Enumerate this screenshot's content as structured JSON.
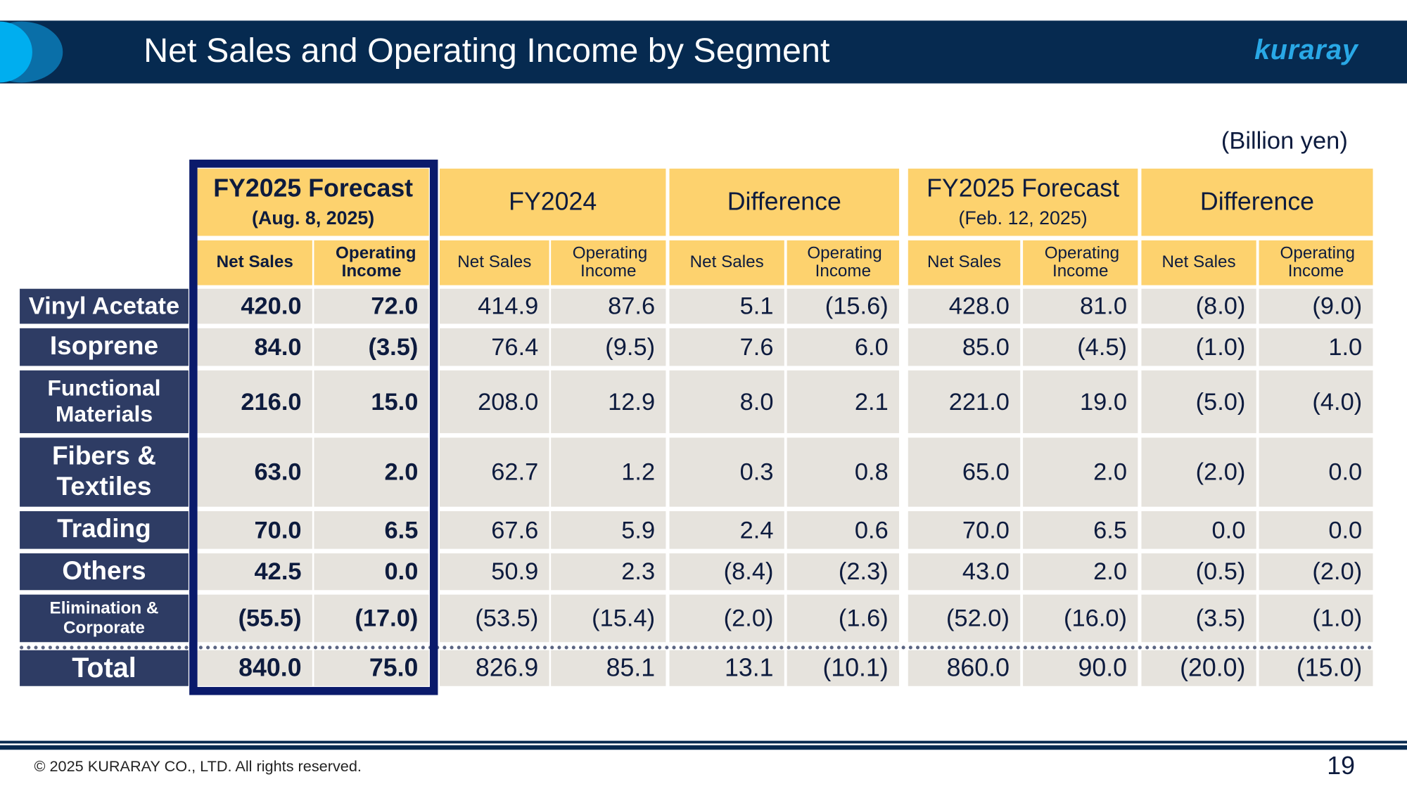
{
  "header": {
    "title": "Net Sales and Operating Income by Segment",
    "logo": "kuraray",
    "accent_colors": {
      "band": "#062a50",
      "logo": "#29a8e6",
      "highlight_box": "#0a1a6b",
      "header_fill": "#fdd26e"
    }
  },
  "unit": "(Billion yen)",
  "table": {
    "groups": [
      {
        "title": "FY2025 Forecast",
        "sub": "(Aug. 8, 2025)"
      },
      {
        "title": "FY2024",
        "sub": ""
      },
      {
        "title": "Difference",
        "sub": ""
      },
      {
        "title": "FY2025 Forecast",
        "sub": "(Feb. 12, 2025)"
      },
      {
        "title": "Difference",
        "sub": ""
      }
    ],
    "subheaders": [
      "Net Sales",
      "Operating Income"
    ],
    "rows": [
      {
        "label": "Vinyl Acetate",
        "values": [
          "420.0",
          "72.0",
          "414.9",
          "87.6",
          "5.1",
          "(15.6)",
          "428.0",
          "81.0",
          "(8.0)",
          "(9.0)"
        ]
      },
      {
        "label": "Isoprene",
        "values": [
          "84.0",
          "(3.5)",
          "76.4",
          "(9.5)",
          "7.6",
          "6.0",
          "85.0",
          "(4.5)",
          "(1.0)",
          "1.0"
        ]
      },
      {
        "label": "Functional Materials",
        "values": [
          "216.0",
          "15.0",
          "208.0",
          "12.9",
          "8.0",
          "2.1",
          "221.0",
          "19.0",
          "(5.0)",
          "(4.0)"
        ]
      },
      {
        "label": "Fibers & Textiles",
        "values": [
          "63.0",
          "2.0",
          "62.7",
          "1.2",
          "0.3",
          "0.8",
          "65.0",
          "2.0",
          "(2.0)",
          "0.0"
        ]
      },
      {
        "label": "Trading",
        "values": [
          "70.0",
          "6.5",
          "67.6",
          "5.9",
          "2.4",
          "0.6",
          "70.0",
          "6.5",
          "0.0",
          "0.0"
        ]
      },
      {
        "label": "Others",
        "values": [
          "42.5",
          "0.0",
          "50.9",
          "2.3",
          "(8.4)",
          "(2.3)",
          "43.0",
          "2.0",
          "(0.5)",
          "(2.0)"
        ]
      },
      {
        "label": "Elimination & Corporate",
        "values": [
          "(55.5)",
          "(17.0)",
          "(53.5)",
          "(15.4)",
          "(2.0)",
          "(1.6)",
          "(52.0)",
          "(16.0)",
          "(3.5)",
          "(1.0)"
        ]
      },
      {
        "label": "Total",
        "values": [
          "840.0",
          "75.0",
          "826.9",
          "85.1",
          "13.1",
          "(10.1)",
          "860.0",
          "90.0",
          "(20.0)",
          "(15.0)"
        ]
      }
    ]
  },
  "footer": {
    "copyright": "© 2025 KURARAY CO., LTD. All rights reserved.",
    "page_number": "19"
  }
}
